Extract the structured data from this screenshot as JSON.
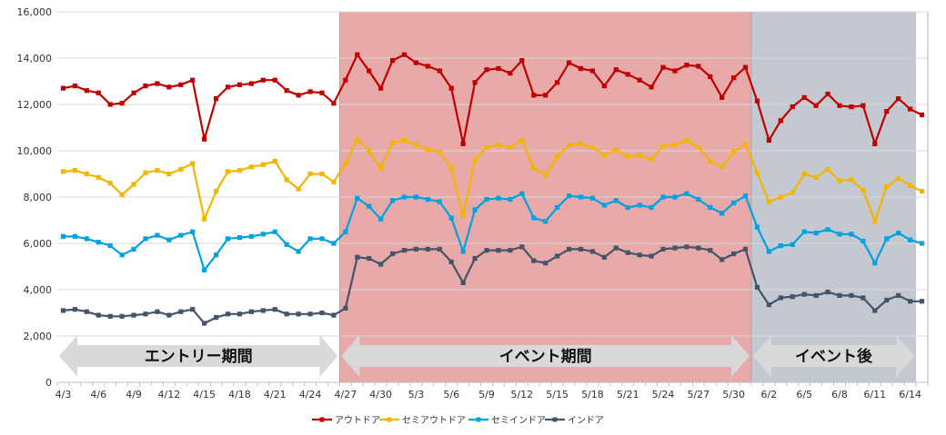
{
  "chart_data": {
    "type": "line",
    "ylim": [
      0,
      16000
    ],
    "yticks": [
      0,
      2000,
      4000,
      6000,
      8000,
      10000,
      12000,
      14000,
      16000
    ],
    "ytick_labels": [
      "0",
      "2,000",
      "4,000",
      "6,000",
      "8,000",
      "10,000",
      "12,000",
      "14,000",
      "16,000"
    ],
    "x": [
      "4/3",
      "4/4",
      "4/5",
      "4/6",
      "4/7",
      "4/8",
      "4/9",
      "4/10",
      "4/11",
      "4/12",
      "4/13",
      "4/14",
      "4/15",
      "4/16",
      "4/17",
      "4/18",
      "4/19",
      "4/20",
      "4/21",
      "4/22",
      "4/23",
      "4/24",
      "4/25",
      "4/26",
      "4/27",
      "4/28",
      "4/29",
      "4/30",
      "5/1",
      "5/2",
      "5/3",
      "5/4",
      "5/5",
      "5/6",
      "5/7",
      "5/8",
      "5/9",
      "5/10",
      "5/11",
      "5/12",
      "5/13",
      "5/14",
      "5/15",
      "5/16",
      "5/17",
      "5/18",
      "5/19",
      "5/20",
      "5/21",
      "5/22",
      "5/23",
      "5/24",
      "5/25",
      "5/26",
      "5/27",
      "5/28",
      "5/29",
      "5/30",
      "5/31",
      "6/1",
      "6/2",
      "6/3",
      "6/4",
      "6/5",
      "6/6",
      "6/7",
      "6/8",
      "6/9",
      "6/10",
      "6/11",
      "6/12",
      "6/13",
      "6/14",
      "6/15"
    ],
    "xtick_labels": [
      "4/3",
      "4/6",
      "4/9",
      "4/12",
      "4/15",
      "4/18",
      "4/21",
      "4/24",
      "4/27",
      "4/30",
      "5/3",
      "5/6",
      "5/9",
      "5/12",
      "5/15",
      "5/18",
      "5/21",
      "5/24",
      "5/27",
      "5/30",
      "6/2",
      "6/5",
      "6/8",
      "6/11",
      "6/14"
    ],
    "series": [
      {
        "name": "アウトドア",
        "color": "#c00000",
        "values": [
          12700,
          12800,
          12600,
          12500,
          12000,
          12050,
          12500,
          12800,
          12900,
          12750,
          12850,
          13050,
          10500,
          12250,
          12750,
          12850,
          12900,
          13050,
          13050,
          12600,
          12400,
          12550,
          12500,
          12050,
          13050,
          14150,
          13450,
          12700,
          13900,
          14150,
          13800,
          13650,
          13450,
          12700,
          10300,
          12950,
          13500,
          13550,
          13350,
          13900,
          12400,
          12400,
          12950,
          13800,
          13550,
          13450,
          12800,
          13500,
          13300,
          13050,
          12750,
          13600,
          13450,
          13700,
          13650,
          13200,
          12300,
          13150,
          13600,
          12150,
          10450,
          11300,
          11900,
          12300,
          11950,
          12450,
          11950,
          11900,
          11950,
          10300,
          11700,
          12250,
          11800,
          11550
        ]
      },
      {
        "name": "セミアウトドア",
        "color": "#f2b600",
        "values": [
          9100,
          9150,
          9000,
          8850,
          8600,
          8100,
          8550,
          9050,
          9150,
          9000,
          9200,
          9450,
          7050,
          8250,
          9100,
          9150,
          9300,
          9400,
          9550,
          8750,
          8350,
          9000,
          9000,
          8650,
          9450,
          10500,
          10000,
          9250,
          10350,
          10450,
          10250,
          10050,
          9950,
          9250,
          7200,
          9600,
          10150,
          10250,
          10150,
          10450,
          9250,
          8950,
          9750,
          10250,
          10300,
          10150,
          9800,
          10050,
          9750,
          9800,
          9650,
          10200,
          10250,
          10450,
          10150,
          9550,
          9300,
          9950,
          10300,
          9050,
          7800,
          8000,
          8200,
          9000,
          8850,
          9200,
          8700,
          8750,
          8300,
          6950,
          8450,
          8800,
          8500,
          8250
        ]
      },
      {
        "name": "セミインドア",
        "color": "#00a2e0",
        "values": [
          6300,
          6300,
          6200,
          6050,
          5900,
          5500,
          5750,
          6200,
          6350,
          6150,
          6350,
          6500,
          4850,
          5500,
          6200,
          6250,
          6300,
          6400,
          6500,
          5950,
          5650,
          6200,
          6200,
          6000,
          6500,
          7950,
          7600,
          7050,
          7850,
          8000,
          8000,
          7900,
          7800,
          7100,
          5650,
          7450,
          7900,
          7950,
          7900,
          8150,
          7100,
          6950,
          7550,
          8050,
          8000,
          7950,
          7650,
          7850,
          7550,
          7650,
          7550,
          8000,
          8000,
          8150,
          7900,
          7550,
          7300,
          7750,
          8050,
          6700,
          5650,
          5900,
          5950,
          6500,
          6450,
          6600,
          6400,
          6400,
          6100,
          5150,
          6200,
          6450,
          6150,
          6000
        ]
      },
      {
        "name": "インドア",
        "color": "#44546a",
        "values": [
          3100,
          3150,
          3050,
          2900,
          2850,
          2850,
          2900,
          2950,
          3050,
          2900,
          3050,
          3150,
          2550,
          2800,
          2950,
          2950,
          3050,
          3100,
          3150,
          2950,
          2950,
          2950,
          3000,
          2900,
          3200,
          5400,
          5350,
          5100,
          5550,
          5700,
          5750,
          5750,
          5750,
          5200,
          4300,
          5350,
          5700,
          5700,
          5700,
          5850,
          5250,
          5150,
          5450,
          5750,
          5750,
          5650,
          5400,
          5800,
          5600,
          5500,
          5450,
          5750,
          5800,
          5850,
          5800,
          5700,
          5300,
          5550,
          5750,
          4100,
          3350,
          3650,
          3700,
          3800,
          3750,
          3900,
          3750,
          3750,
          3650,
          3100,
          3550,
          3750,
          3500,
          3500
        ]
      }
    ],
    "periods": [
      {
        "label": "エントリー期間",
        "start": "4/3",
        "end": "4/27",
        "shaded": false
      },
      {
        "label": "イベント期間",
        "start": "4/27",
        "end": "6/1",
        "shaded": true,
        "color": "#e8a9a9"
      },
      {
        "label": "イベント後",
        "start": "6/1",
        "end": "6/15",
        "shaded": true,
        "color": "#c4c8d0"
      }
    ],
    "grid": true,
    "legend_position": "bottom"
  }
}
